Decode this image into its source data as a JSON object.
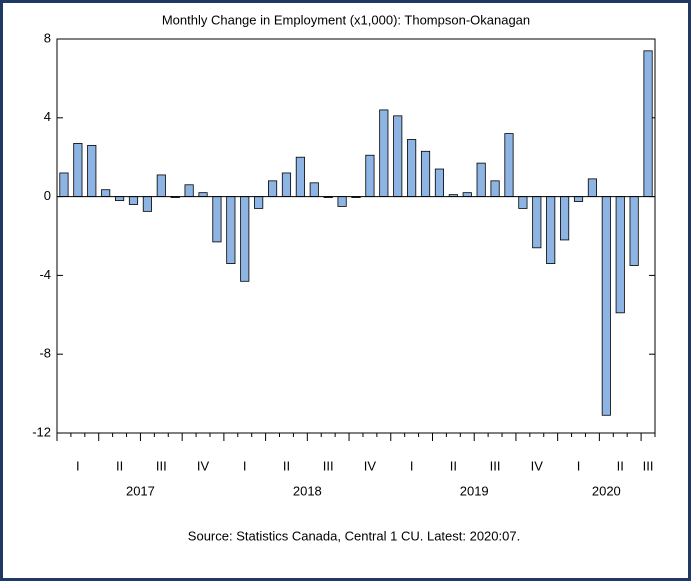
{
  "chart_data": {
    "type": "bar",
    "title": "Monthly Change in Employment (x1,000): Thompson-Okanagan",
    "source": "Source: Statistics Canada, Central 1 CU. Latest: 2020:07.",
    "categories": [
      null,
      "I",
      null,
      null,
      "II",
      null,
      null,
      "III",
      null,
      null,
      "IV",
      null,
      null,
      "I",
      null,
      null,
      "II",
      null,
      null,
      "III",
      null,
      null,
      "IV",
      null,
      null,
      "I",
      null,
      null,
      "II",
      null,
      null,
      "III",
      null,
      null,
      "IV",
      null,
      null,
      "I",
      null,
      null,
      "II",
      null,
      "III"
    ],
    "years": [
      "2017",
      "2018",
      "2019",
      "2020"
    ],
    "values": [
      1.2,
      2.7,
      2.6,
      0.35,
      -0.2,
      -0.4,
      -0.75,
      1.1,
      -0.05,
      0.6,
      0.2,
      -2.3,
      -3.4,
      -4.3,
      -0.6,
      0.8,
      1.2,
      2.0,
      0.7,
      -0.05,
      -0.5,
      -0.05,
      2.1,
      4.4,
      4.1,
      2.9,
      2.3,
      1.4,
      0.1,
      0.2,
      1.7,
      0.8,
      3.2,
      -0.6,
      -2.6,
      -3.4,
      -2.2,
      -0.25,
      0.9,
      -11.1,
      -5.9,
      -3.5,
      7.4
    ],
    "color": "#8db4e2",
    "ylim": [
      -12,
      8
    ],
    "yticks": [
      8,
      4,
      0,
      -4,
      -8,
      -12
    ],
    "grid": false
  }
}
